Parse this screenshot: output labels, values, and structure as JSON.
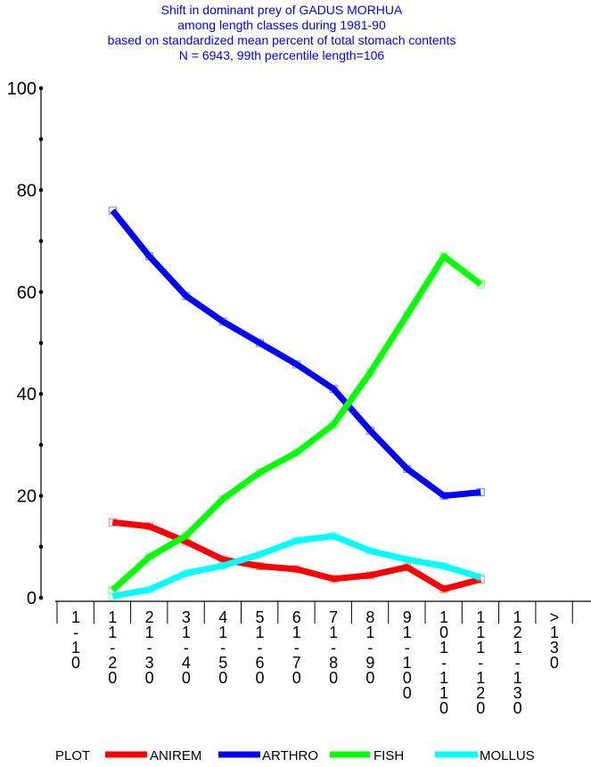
{
  "chart_data": {
    "type": "line",
    "title": [
      "Shift in dominant prey of GADUS MORHUA",
      "among length classes during 1981-90",
      "based on standardized mean percent of  total stomach contents",
      "N = 6943, 99th percentile  length=106"
    ],
    "categories": [
      "1-10",
      "11-20",
      "21-30",
      "31-40",
      "41-50",
      "51-60",
      "61-70",
      "71-80",
      "81-90",
      "91-100",
      "101-110",
      "111-120",
      "121-130",
      ">130"
    ],
    "ylim": [
      0,
      100
    ],
    "yticks": [
      0,
      20,
      40,
      60,
      80,
      100
    ],
    "legend_label": "PLOT",
    "legend_position": "bottom",
    "series": [
      {
        "name": "ANIREM",
        "color": "#ff0000",
        "values": [
          null,
          14.8,
          14.0,
          11.0,
          7.5,
          6.2,
          5.6,
          3.7,
          4.4,
          6.0,
          1.7,
          3.6,
          null,
          null
        ]
      },
      {
        "name": "ARTHRO",
        "color": "#0000ff",
        "values": [
          null,
          76.0,
          67.0,
          59.2,
          54.2,
          50.0,
          45.8,
          41.0,
          32.8,
          25.3,
          20.0,
          20.7,
          null,
          null
        ]
      },
      {
        "name": "FISH",
        "color": "#00ff00",
        "values": [
          null,
          1.5,
          8.0,
          12.2,
          19.4,
          24.6,
          28.5,
          34.0,
          44.2,
          55.5,
          67.0,
          61.5,
          null,
          null
        ]
      },
      {
        "name": "MOLLUS",
        "color": "#00ffff",
        "values": [
          null,
          0.3,
          1.6,
          4.8,
          6.3,
          8.5,
          11.2,
          12.1,
          9.2,
          7.5,
          6.2,
          4.0,
          null,
          null
        ]
      }
    ]
  }
}
